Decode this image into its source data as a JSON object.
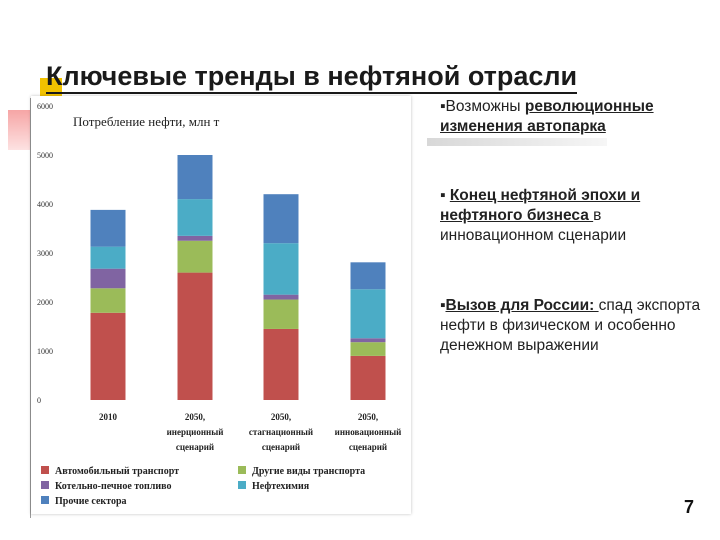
{
  "slide": {
    "title": "Ключевые тренды в нефтяной отрасли",
    "page_number": "7",
    "bullets": [
      {
        "marker": "▪",
        "prefix": "Возможны ",
        "bold": "революционные изменения автопарка",
        "rest": ""
      },
      {
        "marker": "▪",
        "prefix": " ",
        "bold": "Конец нефтяной эпохи и нефтяного бизнеса ",
        "rest": "в инновационном сценарии"
      },
      {
        "marker": "▪",
        "prefix": "",
        "bold": "Вызов для России: ",
        "rest": " спад экспорта нефти в физическом и особенно денежном выражении"
      }
    ]
  },
  "chart_data": {
    "type": "bar",
    "stacked": true,
    "title": "Потребление нефти, млн т",
    "ylim": [
      0,
      6000
    ],
    "yticks": [
      "0",
      "1000",
      "2000",
      "3000",
      "4000",
      "5000",
      "6000"
    ],
    "categories": [
      [
        "2010"
      ],
      [
        "2050,",
        "инерционный",
        "сценарий"
      ],
      [
        "2050,",
        "стагнационный",
        "сценарий"
      ],
      [
        "2050,",
        "инновационный",
        "сценарий"
      ]
    ],
    "series": [
      {
        "name": "Автомобильный транспорт",
        "color": "#c0504d",
        "values": [
          1780,
          2600,
          1450,
          900
        ]
      },
      {
        "name": "Другие виды транспорта",
        "color": "#9bbb59",
        "values": [
          500,
          650,
          600,
          280
        ]
      },
      {
        "name": "Котельно-печное топливо",
        "color": "#8064a2",
        "values": [
          400,
          100,
          100,
          80
        ]
      },
      {
        "name": "Нефтехимия",
        "color": "#4bacc6",
        "values": [
          450,
          750,
          1050,
          1000
        ]
      },
      {
        "name": "Прочие сектора",
        "color": "#4f81bd",
        "values": [
          750,
          900,
          1000,
          550
        ]
      }
    ],
    "legend": "bottom",
    "grid": false
  }
}
